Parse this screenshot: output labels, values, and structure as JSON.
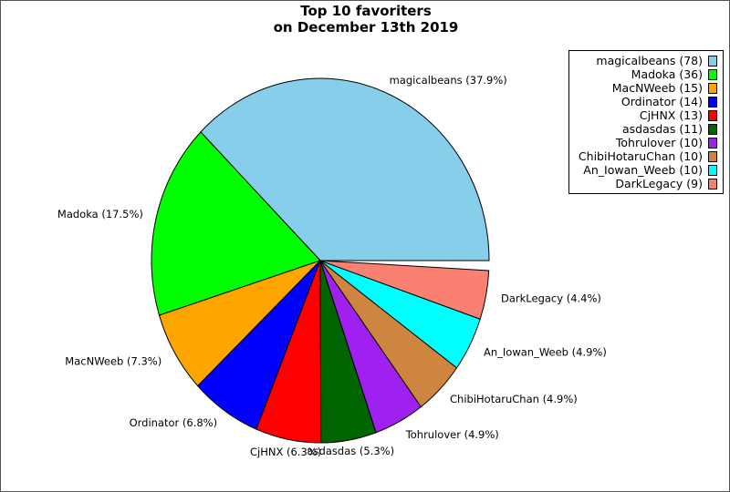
{
  "chart_data": {
    "type": "pie",
    "title": [
      "Top 10 favoriters",
      "on December 13th 2019"
    ],
    "slices": [
      {
        "name": "magicalbeans",
        "value": 78,
        "label": "magicalbeans (37.9%)",
        "legend": "magicalbeans (78)",
        "color": "#87ceeb"
      },
      {
        "name": "Madoka",
        "value": 36,
        "label": "Madoka (17.5%)",
        "legend": "Madoka (36)",
        "color": "#00ff00"
      },
      {
        "name": "MacNWeeb",
        "value": 15,
        "label": "MacNWeeb (7.3%)",
        "legend": "MacNWeeb (15)",
        "color": "#ffa500"
      },
      {
        "name": "Ordinator",
        "value": 14,
        "label": "Ordinator (6.8%)",
        "legend": "Ordinator (14)",
        "color": "#0000ff"
      },
      {
        "name": "CjHNX",
        "value": 13,
        "label": "CjHNX (6.3%)",
        "legend": "CjHNX (13)",
        "color": "#ff0000"
      },
      {
        "name": "asdasdas",
        "value": 11,
        "label": "asdasdas (5.3%)",
        "legend": "asdasdas (11)",
        "color": "#006400"
      },
      {
        "name": "Tohrulover",
        "value": 10,
        "label": "Tohrulover (4.9%)",
        "legend": "Tohrulover (10)",
        "color": "#a020f0"
      },
      {
        "name": "ChibiHotaruChan",
        "value": 10,
        "label": "ChibiHotaruChan (4.9%)",
        "legend": "ChibiHotaruChan (10)",
        "color": "#cd853f"
      },
      {
        "name": "An_Iowan_Weeb",
        "value": 10,
        "label": "An_Iowan_Weeb (4.9%)",
        "legend": "An_Iowan_Weeb (10)",
        "color": "#00ffff"
      },
      {
        "name": "DarkLegacy",
        "value": 9,
        "label": "DarkLegacy (4.4%)",
        "legend": "DarkLegacy (9)",
        "color": "#fa8072"
      }
    ],
    "gap_color": "#ffffff",
    "legend_position": "top-right",
    "start": "3 o'clock",
    "direction": "counterclockwise"
  }
}
